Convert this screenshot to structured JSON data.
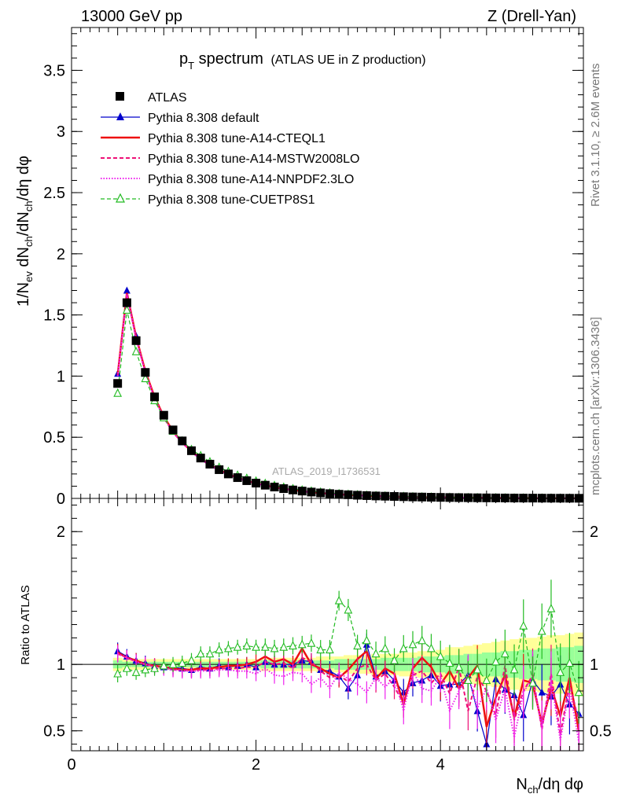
{
  "header": {
    "energy": "13000 GeV pp",
    "process": "Z (Drell-Yan)"
  },
  "side_labels": {
    "rivet": "Rivet 3.1.10, ≥ 2.6M events",
    "mcplots": "mcplots.cern.ch [arXiv:1306.3436]"
  },
  "watermark": "ATLAS_2019_I1736531",
  "colors": {
    "atlas": "#000000",
    "default": "#0000cc",
    "cteql1": "#ee1111",
    "mstw": "#ee1177",
    "nnpdf": "#ee22ee",
    "cuetp": "#22bb22",
    "band_yellow": "#ffff99",
    "band_green": "#99ff99"
  },
  "chart_data": [
    {
      "type": "scatter",
      "title_main": "p",
      "title_sub": "T",
      "title_tail": " spectrum",
      "title_paren": "(ATLAS UE in Z production)",
      "ylabel_parts": [
        "1/N",
        "ev",
        " dN",
        "ch",
        "/dN",
        "ch",
        "/dη dφ"
      ],
      "xlim": [
        0,
        5.55
      ],
      "ylim": [
        0,
        3.85
      ],
      "yticks": [
        {
          "v": 0,
          "label": "0"
        },
        {
          "v": 0.5,
          "label": "0.5"
        },
        {
          "v": 1,
          "label": "1"
        },
        {
          "v": 1.5,
          "label": "1.5"
        },
        {
          "v": 2,
          "label": "2"
        },
        {
          "v": 2.5,
          "label": "2.5"
        },
        {
          "v": 3,
          "label": "3"
        },
        {
          "v": 3.5,
          "label": "3.5"
        }
      ],
      "legend_position": "top-left",
      "x": [
        0.5,
        0.6,
        0.7,
        0.8,
        0.9,
        1.0,
        1.1,
        1.2,
        1.3,
        1.4,
        1.5,
        1.6,
        1.7,
        1.8,
        1.9,
        2.0,
        2.1,
        2.2,
        2.3,
        2.4,
        2.5,
        2.6,
        2.7,
        2.8,
        2.9,
        3.0,
        3.1,
        3.2,
        3.3,
        3.4,
        3.5,
        3.6,
        3.7,
        3.8,
        3.9,
        4.0,
        4.1,
        4.2,
        4.3,
        4.4,
        4.5,
        4.6,
        4.7,
        4.8,
        4.9,
        5.0,
        5.1,
        5.2,
        5.3,
        5.4,
        5.5
      ],
      "series": [
        {
          "name": "ATLAS",
          "key": "atlas",
          "values": [
            0.94,
            1.6,
            1.29,
            1.03,
            0.83,
            0.68,
            0.56,
            0.47,
            0.39,
            0.33,
            0.28,
            0.235,
            0.2,
            0.17,
            0.145,
            0.125,
            0.108,
            0.093,
            0.08,
            0.069,
            0.06,
            0.052,
            0.045,
            0.039,
            0.034,
            0.03,
            0.026,
            0.023,
            0.02,
            0.018,
            0.016,
            0.014,
            0.012,
            0.011,
            0.0095,
            0.0084,
            0.0074,
            0.0065,
            0.0057,
            0.005,
            0.0044,
            0.0039,
            0.0034,
            0.003,
            0.0027,
            0.0024,
            0.0021,
            0.0018,
            0.0016,
            0.0014,
            0.0012
          ]
        },
        {
          "name": "Pythia 8.308 default",
          "key": "default",
          "values": [
            1.02,
            1.7,
            1.33,
            1.04,
            0.83,
            0.67,
            0.55,
            0.46,
            0.385,
            0.325,
            0.274,
            0.232,
            0.198,
            0.168,
            0.144,
            0.124,
            0.107,
            0.092,
            0.079,
            0.068,
            0.059,
            0.051,
            0.044,
            0.038,
            0.033,
            0.029,
            0.025,
            0.022,
            0.019,
            0.017,
            0.015,
            0.013,
            0.0115,
            0.01,
            0.009,
            0.008,
            0.007,
            0.006,
            0.0053,
            0.0047,
            0.0041,
            0.0036,
            0.0032,
            0.0028,
            0.0025,
            0.0022,
            0.0019,
            0.0017,
            0.0015,
            0.0013,
            0.0011
          ]
        },
        {
          "name": "Pythia 8.308 tune-A14-CTEQL1",
          "key": "cteql1",
          "values": [
            1.01,
            1.68,
            1.32,
            1.04,
            0.83,
            0.67,
            0.55,
            0.46,
            0.385,
            0.325,
            0.274,
            0.232,
            0.198,
            0.168,
            0.144,
            0.124,
            0.107,
            0.092,
            0.079,
            0.068,
            0.059,
            0.051,
            0.044,
            0.038,
            0.033,
            0.029,
            0.025,
            0.022,
            0.019,
            0.017,
            0.015,
            0.013,
            0.0115,
            0.01,
            0.009,
            0.008,
            0.007,
            0.006,
            0.0053,
            0.0047,
            0.0041,
            0.0036,
            0.0032,
            0.0028,
            0.0025,
            0.0022,
            0.0019,
            0.0017,
            0.0015,
            0.0013,
            0.0011
          ]
        },
        {
          "name": "Pythia 8.308 tune-A14-MSTW2008LO",
          "key": "mstw",
          "values": [
            1.0,
            1.67,
            1.31,
            1.03,
            0.82,
            0.66,
            0.54,
            0.455,
            0.38,
            0.32,
            0.27,
            0.229,
            0.195,
            0.166,
            0.142,
            0.122,
            0.105,
            0.09,
            0.078,
            0.067,
            0.058,
            0.05,
            0.043,
            0.037,
            0.032,
            0.028,
            0.024,
            0.021,
            0.019,
            0.017,
            0.015,
            0.013,
            0.0112,
            0.0098,
            0.0088,
            0.0078,
            0.0068,
            0.0059,
            0.0052,
            0.0046,
            0.004,
            0.0035,
            0.0031,
            0.0027,
            0.0024,
            0.0021,
            0.0018,
            0.0016,
            0.0014,
            0.0012,
            0.001
          ]
        },
        {
          "name": "Pythia 8.308 tune-A14-NNPDF2.3LO",
          "key": "nnpdf",
          "values": [
            1.0,
            1.67,
            1.31,
            1.03,
            0.82,
            0.66,
            0.54,
            0.455,
            0.38,
            0.32,
            0.27,
            0.229,
            0.195,
            0.166,
            0.142,
            0.122,
            0.105,
            0.09,
            0.078,
            0.067,
            0.058,
            0.05,
            0.043,
            0.037,
            0.032,
            0.028,
            0.024,
            0.021,
            0.019,
            0.017,
            0.015,
            0.013,
            0.0112,
            0.0098,
            0.0088,
            0.0078,
            0.0068,
            0.0059,
            0.0052,
            0.0046,
            0.004,
            0.0035,
            0.0031,
            0.0027,
            0.0024,
            0.0021,
            0.0018,
            0.0016,
            0.0014,
            0.0012,
            0.001
          ]
        },
        {
          "name": "Pythia 8.308 tune-CUETP8S1",
          "key": "cuetp",
          "values": [
            0.86,
            1.54,
            1.2,
            0.98,
            0.8,
            0.66,
            0.55,
            0.47,
            0.4,
            0.35,
            0.3,
            0.255,
            0.22,
            0.19,
            0.165,
            0.142,
            0.123,
            0.106,
            0.092,
            0.08,
            0.069,
            0.06,
            0.052,
            0.045,
            0.039,
            0.034,
            0.03,
            0.026,
            0.023,
            0.02,
            0.018,
            0.016,
            0.014,
            0.0125,
            0.011,
            0.0097,
            0.0086,
            0.0076,
            0.0067,
            0.0059,
            0.0052,
            0.0046,
            0.0041,
            0.0036,
            0.0032,
            0.0028,
            0.0025,
            0.0022,
            0.0019,
            0.0017,
            0.0015
          ]
        }
      ]
    },
    {
      "type": "line",
      "ylabel": "Ratio to ATLAS",
      "xlabel_parts": [
        "N",
        "ch",
        "/dη dφ"
      ],
      "xlim": [
        0,
        5.55
      ],
      "ylim": [
        0.35,
        2.25
      ],
      "xticks": [
        {
          "v": 0,
          "label": "0"
        },
        {
          "v": 2,
          "label": "2"
        },
        {
          "v": 4,
          "label": "4"
        }
      ],
      "yticks": [
        {
          "v": 0.5,
          "label": "0.5"
        },
        {
          "v": 1,
          "label": "1"
        },
        {
          "v": 2,
          "label": "2"
        }
      ],
      "x": [
        0.5,
        0.6,
        0.7,
        0.8,
        0.9,
        1.0,
        1.1,
        1.2,
        1.3,
        1.4,
        1.5,
        1.6,
        1.7,
        1.8,
        1.9,
        2.0,
        2.1,
        2.2,
        2.3,
        2.4,
        2.5,
        2.6,
        2.7,
        2.8,
        2.9,
        3.0,
        3.1,
        3.2,
        3.3,
        3.4,
        3.5,
        3.6,
        3.7,
        3.8,
        3.9,
        4.0,
        4.1,
        4.2,
        4.3,
        4.4,
        4.5,
        4.6,
        4.7,
        4.8,
        4.9,
        5.0,
        5.1,
        5.2,
        5.3,
        5.4,
        5.5
      ],
      "band_yellow_half": [
        0.05,
        0.04,
        0.04,
        0.04,
        0.04,
        0.04,
        0.04,
        0.04,
        0.04,
        0.04,
        0.04,
        0.04,
        0.04,
        0.04,
        0.04,
        0.04,
        0.05,
        0.05,
        0.05,
        0.05,
        0.05,
        0.05,
        0.06,
        0.06,
        0.06,
        0.07,
        0.07,
        0.07,
        0.08,
        0.08,
        0.08,
        0.09,
        0.09,
        0.1,
        0.1,
        0.11,
        0.13,
        0.13,
        0.14,
        0.15,
        0.16,
        0.17,
        0.18,
        0.19,
        0.2,
        0.2,
        0.21,
        0.22,
        0.22,
        0.23,
        0.24
      ],
      "band_green_half": [
        0.03,
        0.02,
        0.02,
        0.02,
        0.02,
        0.02,
        0.02,
        0.02,
        0.02,
        0.02,
        0.02,
        0.02,
        0.02,
        0.02,
        0.02,
        0.02,
        0.03,
        0.03,
        0.03,
        0.03,
        0.03,
        0.03,
        0.03,
        0.03,
        0.04,
        0.04,
        0.04,
        0.04,
        0.04,
        0.05,
        0.05,
        0.05,
        0.05,
        0.06,
        0.06,
        0.06,
        0.07,
        0.07,
        0.08,
        0.08,
        0.09,
        0.09,
        0.1,
        0.1,
        0.11,
        0.11,
        0.12,
        0.12,
        0.13,
        0.13,
        0.14
      ],
      "series": [
        {
          "name": "Pythia 8.308 default",
          "key": "default",
          "values": [
            1.1,
            1.06,
            1.03,
            1.01,
            0.99,
            0.98,
            0.98,
            0.97,
            0.96,
            0.98,
            0.97,
            0.99,
            0.98,
            0.99,
            1.0,
            0.98,
            1.02,
            1.0,
            1.0,
            1.0,
            1.03,
            1.02,
            0.96,
            0.95,
            0.91,
            0.82,
            0.92,
            1.15,
            0.91,
            0.95,
            0.88,
            0.79,
            0.86,
            0.88,
            0.92,
            0.84,
            0.85,
            0.85,
            0.92,
            0.65,
            0.4,
            0.89,
            0.81,
            0.77,
            0.62,
            0.88,
            0.79,
            0.76,
            0.85,
            0.7,
            0.63
          ]
        },
        {
          "name": "Pythia 8.308 tune-A14-CTEQL1",
          "key": "cteql1",
          "values": [
            1.09,
            1.05,
            1.03,
            1.0,
            0.99,
            0.98,
            0.97,
            0.96,
            0.96,
            0.97,
            0.97,
            0.98,
            0.99,
            0.99,
            1.0,
            1.02,
            1.06,
            1.02,
            1.04,
            1.0,
            1.12,
            1.0,
            0.97,
            0.93,
            0.9,
            0.96,
            1.04,
            1.1,
            0.89,
            0.97,
            0.93,
            0.7,
            0.97,
            1.05,
            0.98,
            0.85,
            0.95,
            0.82,
            0.9,
            0.99,
            0.53,
            0.75,
            0.92,
            0.6,
            0.88,
            0.86,
            0.55,
            0.83,
            0.61,
            0.9,
            0.5
          ]
        },
        {
          "name": "Pythia 8.308 tune-A14-MSTW2008LO",
          "key": "mstw",
          "values": [
            1.08,
            1.05,
            1.02,
            1.0,
            0.99,
            0.98,
            0.96,
            0.96,
            0.95,
            0.96,
            0.96,
            0.97,
            0.97,
            0.97,
            0.98,
            0.98,
            1.02,
            1.0,
            1.01,
            0.97,
            1.05,
            1.02,
            0.95,
            0.9,
            0.92,
            0.87,
            0.97,
            1.0,
            0.88,
            0.93,
            0.83,
            0.71,
            0.92,
            0.95,
            0.86,
            0.93,
            0.78,
            0.98,
            0.65,
            0.91,
            0.8,
            0.62,
            0.99,
            0.58,
            0.8,
            0.92,
            0.51,
            0.93,
            0.47,
            0.86,
            0.57
          ]
        },
        {
          "name": "Pythia 8.308 tune-A14-NNPDF2.3LO",
          "key": "nnpdf",
          "values": [
            1.08,
            1.05,
            1.02,
            1.0,
            0.98,
            0.97,
            0.96,
            0.95,
            0.95,
            0.95,
            0.95,
            0.96,
            0.96,
            0.95,
            0.95,
            0.93,
            0.97,
            0.92,
            0.91,
            0.94,
            0.93,
            0.85,
            0.9,
            0.82,
            0.94,
            0.89,
            0.85,
            0.79,
            0.9,
            0.83,
            0.9,
            0.65,
            0.95,
            0.82,
            0.8,
            0.91,
            0.65,
            0.8,
            0.93,
            0.67,
            0.82,
            0.58,
            0.82,
            0.45,
            0.79,
            0.9,
            0.52,
            0.88,
            0.43,
            0.82,
            0.42
          ]
        },
        {
          "name": "Pythia 8.308 tune-CUETP8S1",
          "key": "cuetp",
          "values": [
            0.93,
            0.97,
            0.94,
            0.96,
            0.97,
            0.99,
            1.0,
            1.01,
            1.03,
            1.08,
            1.08,
            1.11,
            1.12,
            1.13,
            1.14,
            1.13,
            1.13,
            1.12,
            1.13,
            1.14,
            1.15,
            1.16,
            1.11,
            1.11,
            1.48,
            1.41,
            1.14,
            1.18,
            1.08,
            1.12,
            1.03,
            1.12,
            1.15,
            1.18,
            1.12,
            1.06,
            1.01,
            0.98,
            0.88,
            0.96,
            0.88,
            1.02,
            1.08,
            0.96,
            1.29,
            0.86,
            1.25,
            1.42,
            0.94,
            1.01,
            0.79
          ]
        }
      ]
    }
  ]
}
